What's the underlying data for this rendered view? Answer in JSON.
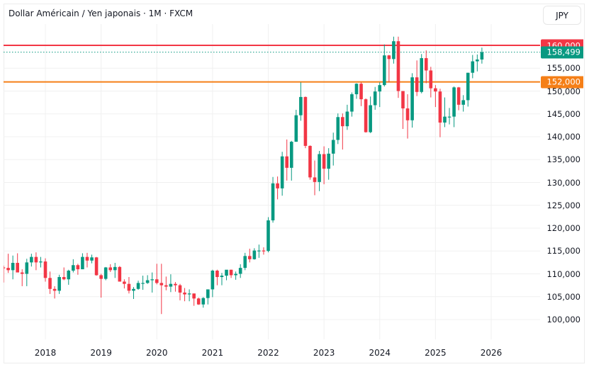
{
  "header": {
    "title": "Dollar Américain / Yen japonais · 1M · FXCM",
    "currency_button": "JPY"
  },
  "colors": {
    "up": "#089981",
    "down": "#f23645",
    "resistance_line": "#f23645",
    "support_line": "#f57f17",
    "last_price_line": "#089981",
    "grid": "#f0f0f0",
    "text": "#131722"
  },
  "price_tags": {
    "resistance": {
      "label": "160,000",
      "value": 160000
    },
    "last": {
      "label": "158,499",
      "value": 158499
    },
    "support": {
      "label": "152,000",
      "value": 152000
    }
  },
  "chart_data": {
    "type": "candlestick",
    "title": "Dollar Américain / Yen japonais · 1M · FXCM",
    "xlabel": "",
    "ylabel": "JPY",
    "ylim": [
      94000,
      162500
    ],
    "y_ticks": [
      100000,
      105000,
      110000,
      115000,
      120000,
      125000,
      130000,
      135000,
      140000,
      145000,
      150000,
      155000
    ],
    "y_tick_labels": [
      "100,000",
      "105,000",
      "110,000",
      "115,000",
      "120,000",
      "125,000",
      "130,000",
      "135,000",
      "140,000",
      "145,000",
      "150,000",
      "155,000"
    ],
    "x_ticks": [
      "2018",
      "2019",
      "2020",
      "2021",
      "2022",
      "2023",
      "2024",
      "2025",
      "2026"
    ],
    "grid": true,
    "horizontal_lines": [
      {
        "name": "resistance",
        "value": 160000,
        "color": "#f23645",
        "style": "solid"
      },
      {
        "name": "support",
        "value": 152000,
        "color": "#f57f17",
        "style": "solid"
      },
      {
        "name": "last-price",
        "value": 158499,
        "color": "#089981",
        "style": "dotted"
      }
    ],
    "start_month": "2017-04",
    "ohlc": [
      [
        111.4,
        111.8,
        108.1,
        111.3
      ],
      [
        111.3,
        114.4,
        110.2,
        110.8
      ],
      [
        110.8,
        114.0,
        108.8,
        112.4
      ],
      [
        112.4,
        114.5,
        110.6,
        110.3
      ],
      [
        110.3,
        111.0,
        107.3,
        110.0
      ],
      [
        110.0,
        113.3,
        107.3,
        112.5
      ],
      [
        112.5,
        114.4,
        111.6,
        113.7
      ],
      [
        113.7,
        114.7,
        110.8,
        112.5
      ],
      [
        112.5,
        113.7,
        111.4,
        112.7
      ],
      [
        112.7,
        113.4,
        108.3,
        109.1
      ],
      [
        109.1,
        110.5,
        105.6,
        106.7
      ],
      [
        106.7,
        107.3,
        104.6,
        106.3
      ],
      [
        106.3,
        109.8,
        105.6,
        109.3
      ],
      [
        109.3,
        111.4,
        108.6,
        108.8
      ],
      [
        108.8,
        110.9,
        107.6,
        110.7
      ],
      [
        110.7,
        113.2,
        110.3,
        111.9
      ],
      [
        111.9,
        112.2,
        109.8,
        111.0
      ],
      [
        111.0,
        114.5,
        111.0,
        113.7
      ],
      [
        113.7,
        114.6,
        111.4,
        112.9
      ],
      [
        112.9,
        114.2,
        112.3,
        113.6
      ],
      [
        113.6,
        113.7,
        109.6,
        109.7
      ],
      [
        109.7,
        110.0,
        104.8,
        108.9
      ],
      [
        108.9,
        111.5,
        108.6,
        111.4
      ],
      [
        111.4,
        112.1,
        110.4,
        110.8
      ],
      [
        110.8,
        112.4,
        109.1,
        111.5
      ],
      [
        111.5,
        111.7,
        108.3,
        108.3
      ],
      [
        108.3,
        108.8,
        106.8,
        107.8
      ],
      [
        107.8,
        109.3,
        105.7,
        106.3
      ],
      [
        106.3,
        107.1,
        104.5,
        106.7
      ],
      [
        106.7,
        108.5,
        106.5,
        108.0
      ],
      [
        108.0,
        109.6,
        106.5,
        108.0
      ],
      [
        108.0,
        109.7,
        107.8,
        108.6
      ],
      [
        108.6,
        110.3,
        105.9,
        108.8
      ],
      [
        108.8,
        112.2,
        107.7,
        108.0
      ],
      [
        108.0,
        112.2,
        101.2,
        107.5
      ],
      [
        107.5,
        109.4,
        106.4,
        107.2
      ],
      [
        107.2,
        109.9,
        106.0,
        107.8
      ],
      [
        107.8,
        108.2,
        106.1,
        107.5
      ],
      [
        107.5,
        107.8,
        104.2,
        105.9
      ],
      [
        105.9,
        106.9,
        104.0,
        105.5
      ],
      [
        105.5,
        106.6,
        104.0,
        105.7
      ],
      [
        105.7,
        105.7,
        103.0,
        104.6
      ],
      [
        104.6,
        104.8,
        103.2,
        103.3
      ],
      [
        103.3,
        104.9,
        102.6,
        104.7
      ],
      [
        104.7,
        106.2,
        103.3,
        106.6
      ],
      [
        106.6,
        110.9,
        104.9,
        110.7
      ],
      [
        110.7,
        110.9,
        107.5,
        109.3
      ],
      [
        109.3,
        110.2,
        107.5,
        109.6
      ],
      [
        109.6,
        110.8,
        108.6,
        110.9
      ],
      [
        110.9,
        110.9,
        109.1,
        109.7
      ],
      [
        109.7,
        110.5,
        108.7,
        110.0
      ],
      [
        110.0,
        112.1,
        109.1,
        111.3
      ],
      [
        111.3,
        114.6,
        110.8,
        113.9
      ],
      [
        113.9,
        115.5,
        112.5,
        113.2
      ],
      [
        113.2,
        115.6,
        113.1,
        115.1
      ],
      [
        115.1,
        116.4,
        113.5,
        115.1
      ],
      [
        115.1,
        115.8,
        114.2,
        115.0
      ],
      [
        115.0,
        122.4,
        114.7,
        121.7
      ],
      [
        121.7,
        131.2,
        121.2,
        129.8
      ],
      [
        129.8,
        131.3,
        126.3,
        128.7
      ],
      [
        128.7,
        136.7,
        127.1,
        135.7
      ],
      [
        135.7,
        139.4,
        130.4,
        133.2
      ],
      [
        133.2,
        139.1,
        130.4,
        138.9
      ],
      [
        138.9,
        145.9,
        138.9,
        144.7
      ],
      [
        144.7,
        151.9,
        143.5,
        148.7
      ],
      [
        148.7,
        148.8,
        137.5,
        138.0
      ],
      [
        138.0,
        138.1,
        130.6,
        131.1
      ],
      [
        131.1,
        134.8,
        127.2,
        130.1
      ],
      [
        130.1,
        136.9,
        128.1,
        136.2
      ],
      [
        136.2,
        137.9,
        129.6,
        133.0
      ],
      [
        133.0,
        137.5,
        130.6,
        136.3
      ],
      [
        136.3,
        140.9,
        133.7,
        139.3
      ],
      [
        139.3,
        145.1,
        138.4,
        144.3
      ],
      [
        144.3,
        145.1,
        137.2,
        142.3
      ],
      [
        142.3,
        147.0,
        141.5,
        145.5
      ],
      [
        145.5,
        149.7,
        144.4,
        149.3
      ],
      [
        149.3,
        151.7,
        148.3,
        151.6
      ],
      [
        151.6,
        151.9,
        146.7,
        148.2
      ],
      [
        148.2,
        148.4,
        140.9,
        141.0
      ],
      [
        141.0,
        148.8,
        140.8,
        146.9
      ],
      [
        146.9,
        150.9,
        145.9,
        149.9
      ],
      [
        149.9,
        151.9,
        146.5,
        151.3
      ],
      [
        151.3,
        160.2,
        151.0,
        157.8
      ],
      [
        157.8,
        157.9,
        151.9,
        157.0
      ],
      [
        157.0,
        161.9,
        156.0,
        160.9
      ],
      [
        160.9,
        161.9,
        148.5,
        150.0
      ],
      [
        150.0,
        150.0,
        141.7,
        146.2
      ],
      [
        146.2,
        149.3,
        139.6,
        143.6
      ],
      [
        143.6,
        153.9,
        142.0,
        153.0
      ],
      [
        153.0,
        156.7,
        148.9,
        149.8
      ],
      [
        149.8,
        158.1,
        149.5,
        157.2
      ],
      [
        157.2,
        158.9,
        151.7,
        154.5
      ],
      [
        154.5,
        155.3,
        148.6,
        150.6
      ],
      [
        150.6,
        151.3,
        146.5,
        149.9
      ],
      [
        149.9,
        150.5,
        139.9,
        143.1
      ],
      [
        143.1,
        148.6,
        142.1,
        144.4
      ],
      [
        144.4,
        146.3,
        142.7,
        144.4
      ],
      [
        144.4,
        151.0,
        142.1,
        150.8
      ],
      [
        150.8,
        150.9,
        145.8,
        147.0
      ],
      [
        147.0,
        149.1,
        145.5,
        148.0
      ],
      [
        148.0,
        154.0,
        146.6,
        154.0
      ],
      [
        154.0,
        157.9,
        152.8,
        156.5
      ],
      [
        156.5,
        158.0,
        154.3,
        156.9
      ],
      [
        156.9,
        159.5,
        156.0,
        158.5
      ]
    ]
  }
}
